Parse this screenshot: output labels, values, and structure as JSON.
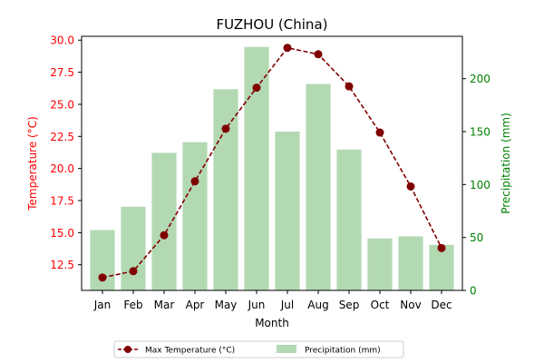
{
  "chart_data": {
    "type": "bar+line",
    "title": "FUZHOU (China)",
    "xlabel": "Month",
    "ylabel_left": "Temperature (°C)",
    "ylabel_right": "Precipitation (mm)",
    "categories": [
      "Jan",
      "Feb",
      "Mar",
      "Apr",
      "May",
      "Jun",
      "Jul",
      "Aug",
      "Sep",
      "Oct",
      "Nov",
      "Dec"
    ],
    "y_left_range": [
      10.5,
      30.3
    ],
    "y_left_ticks": [
      "12.5",
      "15.0",
      "17.5",
      "20.0",
      "22.5",
      "25.0",
      "27.5",
      "30.0"
    ],
    "y_right_range": [
      0,
      240
    ],
    "y_right_ticks": [
      "0",
      "50",
      "100",
      "150",
      "200"
    ],
    "series": [
      {
        "name": "Max Temperature (°C)",
        "kind": "line",
        "axis": "left",
        "color": "#800000",
        "values": [
          11.5,
          12.0,
          14.8,
          19.0,
          23.1,
          26.3,
          29.4,
          28.9,
          26.4,
          22.8,
          18.6,
          13.8
        ]
      },
      {
        "name": "Precipitation (mm)",
        "kind": "bar",
        "axis": "right",
        "color": "#b3d9b3",
        "values": [
          57,
          79,
          130,
          140,
          190,
          230,
          150,
          195,
          133,
          49,
          51,
          43
        ]
      }
    ],
    "left_axis_color": "#ff0000",
    "right_axis_color": "#008000",
    "legend": {
      "placement": "bottom-center",
      "items": [
        "Max Temperature (°C)",
        "Precipitation (mm)"
      ]
    }
  }
}
